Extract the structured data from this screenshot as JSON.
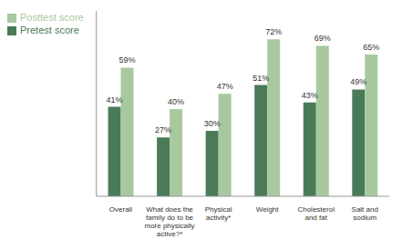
{
  "chart_data": {
    "type": "bar",
    "categories": [
      "Overall",
      "What does the\nfamily do to be\nmore physically\nactive?*",
      "Physical\nactivity*",
      "Weight",
      "Cholesterol\nand fat",
      "Salt and\nsodium"
    ],
    "series": [
      {
        "name": "Pretest score",
        "color": "#4a7a58",
        "values": [
          41,
          27,
          30,
          51,
          43,
          49
        ],
        "value_labels": [
          "41%",
          "27%",
          "30%",
          "51%",
          "43%",
          "49%"
        ]
      },
      {
        "name": "Posttest score",
        "color": "#a8c9a0",
        "values": [
          59,
          40,
          47,
          72,
          69,
          65
        ],
        "value_labels": [
          "59%",
          "40%",
          "47%",
          "72%",
          "69%",
          "65%"
        ]
      }
    ],
    "ylim": [
      0,
      85
    ],
    "grid": false,
    "legend": "upper left",
    "data_labels": true,
    "tick_labels": "x"
  }
}
